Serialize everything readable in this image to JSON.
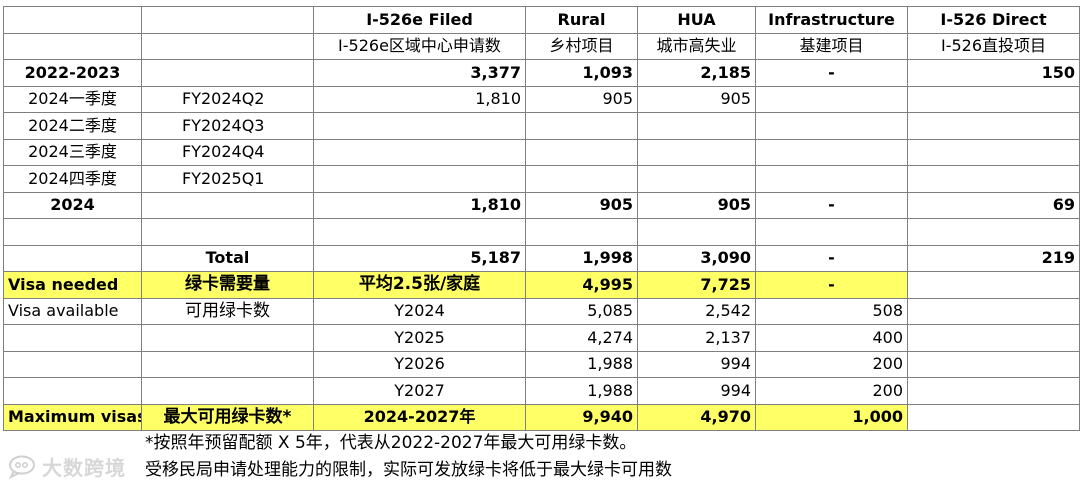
{
  "header": {
    "filed_en": "I-526e Filed",
    "filed_cn": "I-526e区域中心申请数",
    "rural_en": "Rural",
    "rural_cn": "乡村项目",
    "hua_en": "HUA",
    "hua_cn": "城市高失业",
    "infra_en": "Infrastructure",
    "infra_cn": "基建项目",
    "direct_en": "I-526 Direct",
    "direct_cn": "I-526直投项目"
  },
  "rows": {
    "r2022": {
      "label": "2022-2023",
      "filed": "3,377",
      "rural": "1,093",
      "hua": "2,185",
      "infra": "-",
      "direct": "150"
    },
    "q1": {
      "label": "2024一季度",
      "fy": "FY2024Q2",
      "filed": "1,810",
      "rural": "905",
      "hua": "905"
    },
    "q2": {
      "label": "2024二季度",
      "fy": "FY2024Q3"
    },
    "q3": {
      "label": "2024三季度",
      "fy": "FY2024Q4"
    },
    "q4": {
      "label": "2024四季度",
      "fy": "FY2025Q1"
    },
    "y2024": {
      "label": "2024",
      "filed": "1,810",
      "rural": "905",
      "hua": "905",
      "infra": "-",
      "direct": "69"
    },
    "total": {
      "label": "Total",
      "filed": "5,187",
      "rural": "1,998",
      "hua": "3,090",
      "infra": "-",
      "direct": "219"
    },
    "visa_needed": {
      "label_en": "Visa needed",
      "label_cn": "绿卡需要量",
      "note": "平均2.5张/家庭",
      "rural": "4,995",
      "hua": "7,725",
      "infra": "-"
    },
    "visa_available": {
      "label_en": "Visa available",
      "label_cn": "可用绿卡数"
    },
    "avail": [
      {
        "year": "Y2024",
        "rural": "5,085",
        "hua": "2,542",
        "infra": "508"
      },
      {
        "year": "Y2025",
        "rural": "4,274",
        "hua": "2,137",
        "infra": "400"
      },
      {
        "year": "Y2026",
        "rural": "1,988",
        "hua": "994",
        "infra": "200"
      },
      {
        "year": "Y2027",
        "rural": "1,988",
        "hua": "994",
        "infra": "200"
      }
    ],
    "max": {
      "label_en": "Maximum visas",
      "label_cn": "最大可用绿卡数*",
      "years": "2024-2027年",
      "rural": "9,940",
      "hua": "4,970",
      "infra": "1,000"
    }
  },
  "notes": {
    "line1": "*按照年预留配额 X 5年，代表从2022-2027年最大可用绿卡数。",
    "line2": "受移民局申请处理能力的限制，实际可发放绿卡将低于最大绿卡可用数"
  },
  "watermark": {
    "text": "大数跨境",
    "icon": "chat-bubble-logo"
  },
  "colors": {
    "highlight": "#ffff66",
    "grid": "#7f7f7f"
  }
}
